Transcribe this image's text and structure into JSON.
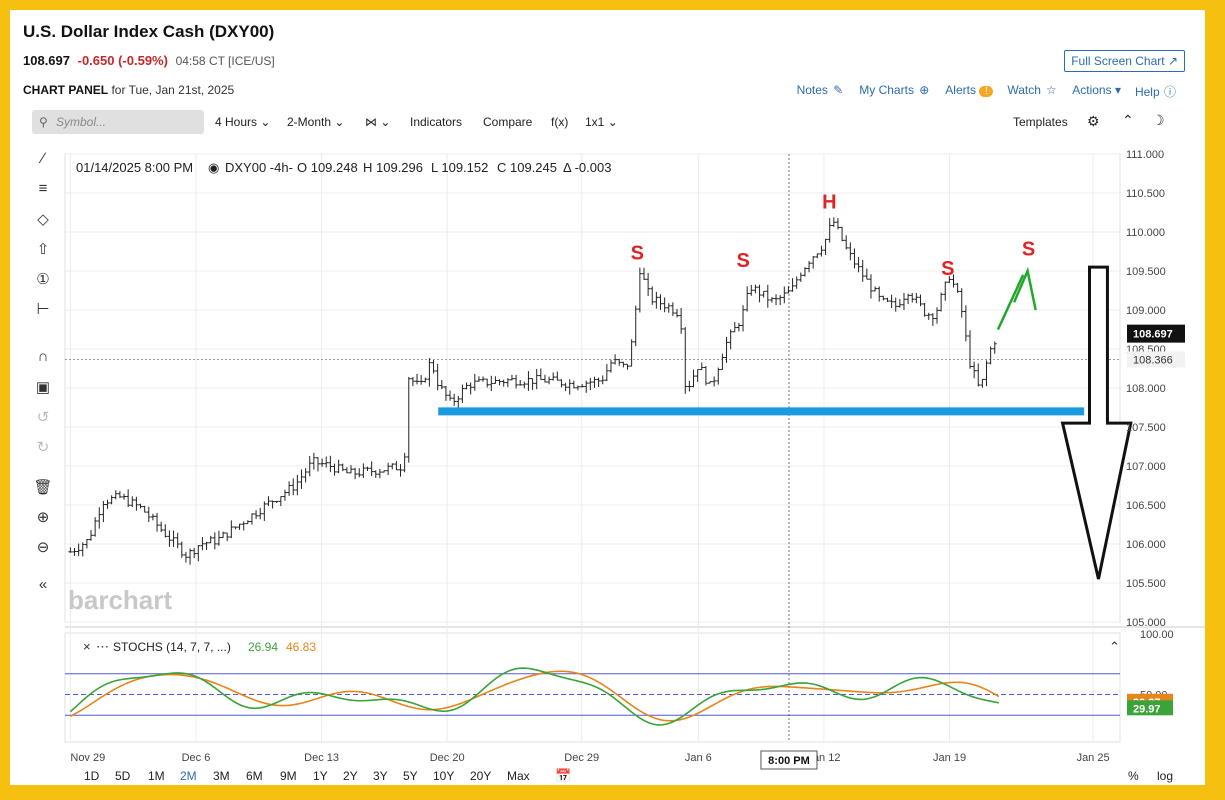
{
  "header": {
    "title": "U.S. Dollar Index Cash (DXY00)",
    "last": "108.697",
    "change": "-0.650 (-0.59%)",
    "meta": "04:58 CT [ICE/US]",
    "full_screen": "Full Screen Chart",
    "panel_label": "CHART PANEL",
    "panel_date": "for Tue, Jan 21st, 2025"
  },
  "toplinks": {
    "notes": "Notes",
    "my_charts": "My Charts",
    "alerts": "Alerts",
    "watch": "Watch",
    "actions": "Actions",
    "help": "Help"
  },
  "toolbar": {
    "symbol_placeholder": "Symbol...",
    "interval": "4 Hours",
    "period": "2-Month",
    "indicators": "Indicators",
    "compare": "Compare",
    "fx": "f(x)",
    "layout": "1x1",
    "templates": "Templates"
  },
  "ohlc_readout": {
    "date": "01/14/2025 8:00 PM",
    "symbol": "DXY00 -4h-",
    "open": "O 109.248",
    "high": "H 109.296",
    "low": "L 109.152",
    "close": "C 109.245",
    "delta": "Δ -0.003"
  },
  "stoch": {
    "label": "STOCHS (14, 7, 7, ...)",
    "k_value": "26.94",
    "d_value": "46.83",
    "k_color": "#3aa33a",
    "d_color": "#e8841c",
    "k_last": "29.97",
    "d_last": "39.37",
    "ticks": [
      "100.00",
      "50.00"
    ]
  },
  "watermark": "barchart",
  "crosshair_time": "8:00 PM",
  "price_badges": {
    "last": "108.697",
    "crosshair": "108.366"
  },
  "ranges": [
    "1D",
    "5D",
    "1M",
    "2M",
    "3M",
    "6M",
    "9M",
    "1Y",
    "2Y",
    "3Y",
    "5Y",
    "10Y",
    "20Y",
    "Max"
  ],
  "active_range": "2M",
  "bottom_right": {
    "percent": "%",
    "log": "log"
  },
  "chart_data": {
    "type": "ohlc",
    "title": "U.S. Dollar Index Cash (DXY00)",
    "y_ticks": [
      111.0,
      110.5,
      110.0,
      109.5,
      109.0,
      108.5,
      108.0,
      107.5,
      107.0,
      106.5,
      106.0,
      105.5,
      105.0
    ],
    "y_tick_labels": [
      "111.000",
      "110.500",
      "110.000",
      "109.500",
      "109.000",
      "108.500",
      "108.000",
      "107.500",
      "107.000",
      "106.500",
      "106.000",
      "105.500",
      "105.000"
    ],
    "ylim": [
      105.0,
      111.0
    ],
    "x_labels": [
      "Nov 29",
      "Dec 6",
      "Dec 13",
      "Dec 20",
      "Dec 29",
      "Jan 6",
      "Jan 12",
      "Jan 19",
      "Jan 25"
    ],
    "x_label_positions": [
      0,
      7,
      14,
      21,
      28.5,
      35,
      42,
      49,
      57
    ],
    "xlim": [
      -0.3,
      58.5
    ],
    "close_path": [
      {
        "x": 0,
        "y": 105.9
      },
      {
        "x": 1,
        "y": 106.05
      },
      {
        "x": 1.8,
        "y": 106.55
      },
      {
        "x": 2.8,
        "y": 106.6
      },
      {
        "x": 4,
        "y": 106.45
      },
      {
        "x": 5.2,
        "y": 106.15
      },
      {
        "x": 6.5,
        "y": 105.85
      },
      {
        "x": 7.2,
        "y": 106.0
      },
      {
        "x": 8.2,
        "y": 106.05
      },
      {
        "x": 9.7,
        "y": 106.3
      },
      {
        "x": 11.2,
        "y": 106.55
      },
      {
        "x": 12.5,
        "y": 106.75
      },
      {
        "x": 13.5,
        "y": 107.05
      },
      {
        "x": 14.5,
        "y": 107.0
      },
      {
        "x": 15.5,
        "y": 106.9
      },
      {
        "x": 17.2,
        "y": 106.95
      },
      {
        "x": 18.6,
        "y": 107.0
      },
      {
        "x": 18.8,
        "y": 108.15
      },
      {
        "x": 19.5,
        "y": 108.0
      },
      {
        "x": 20.1,
        "y": 108.35
      },
      {
        "x": 20.5,
        "y": 108.05
      },
      {
        "x": 21.2,
        "y": 107.8
      },
      {
        "x": 22.2,
        "y": 108.05
      },
      {
        "x": 24.5,
        "y": 108.1
      },
      {
        "x": 26.5,
        "y": 108.1
      },
      {
        "x": 28,
        "y": 108.05
      },
      {
        "x": 29.6,
        "y": 108.1
      },
      {
        "x": 30.2,
        "y": 108.35
      },
      {
        "x": 31,
        "y": 108.25
      },
      {
        "x": 31.4,
        "y": 108.7
      },
      {
        "x": 31.7,
        "y": 109.55
      },
      {
        "x": 32.3,
        "y": 109.15
      },
      {
        "x": 33.3,
        "y": 109.05
      },
      {
        "x": 34.0,
        "y": 108.95
      },
      {
        "x": 34.3,
        "y": 107.95
      },
      {
        "x": 35.0,
        "y": 108.3
      },
      {
        "x": 35.7,
        "y": 108.0
      },
      {
        "x": 36.5,
        "y": 108.55
      },
      {
        "x": 37.4,
        "y": 108.9
      },
      {
        "x": 37.9,
        "y": 109.3
      },
      {
        "x": 39.2,
        "y": 109.1
      },
      {
        "x": 40.2,
        "y": 109.25
      },
      {
        "x": 40.6,
        "y": 109.45
      },
      {
        "x": 41.2,
        "y": 109.65
      },
      {
        "x": 42.0,
        "y": 109.85
      },
      {
        "x": 42.5,
        "y": 110.15
      },
      {
        "x": 43.3,
        "y": 109.75
      },
      {
        "x": 44.0,
        "y": 109.5
      },
      {
        "x": 45.2,
        "y": 109.1
      },
      {
        "x": 46.0,
        "y": 109.05
      },
      {
        "x": 46.7,
        "y": 109.25
      },
      {
        "x": 47.7,
        "y": 108.95
      },
      {
        "x": 48.2,
        "y": 108.95
      },
      {
        "x": 49.0,
        "y": 109.45
      },
      {
        "x": 49.6,
        "y": 109.1
      },
      {
        "x": 50.1,
        "y": 108.35
      },
      {
        "x": 50.7,
        "y": 107.95
      },
      {
        "x": 51.2,
        "y": 108.45
      },
      {
        "x": 51.7,
        "y": 108.7
      }
    ],
    "series": [
      {
        "name": "DXY00",
        "last": 108.697
      },
      {
        "name": "STOCHS %K",
        "last": 29.97
      },
      {
        "name": "STOCHS %D",
        "last": 39.37
      }
    ],
    "grid": true,
    "annotations": [
      {
        "text": "S",
        "x": 31.6,
        "y": 109.65,
        "color": "#e02424"
      },
      {
        "text": "S",
        "x": 37.5,
        "y": 109.55,
        "color": "#e02424"
      },
      {
        "text": "H",
        "x": 42.3,
        "y": 110.3,
        "color": "#e02424"
      },
      {
        "text": "S",
        "x": 48.9,
        "y": 109.45,
        "color": "#e02424"
      },
      {
        "text": "S",
        "x": 53.4,
        "y": 109.7,
        "color": "#e02424"
      }
    ],
    "neckline": {
      "y": 107.7,
      "x_start": 20.5,
      "x_end": 56.5,
      "color": "#1a9be0"
    }
  }
}
